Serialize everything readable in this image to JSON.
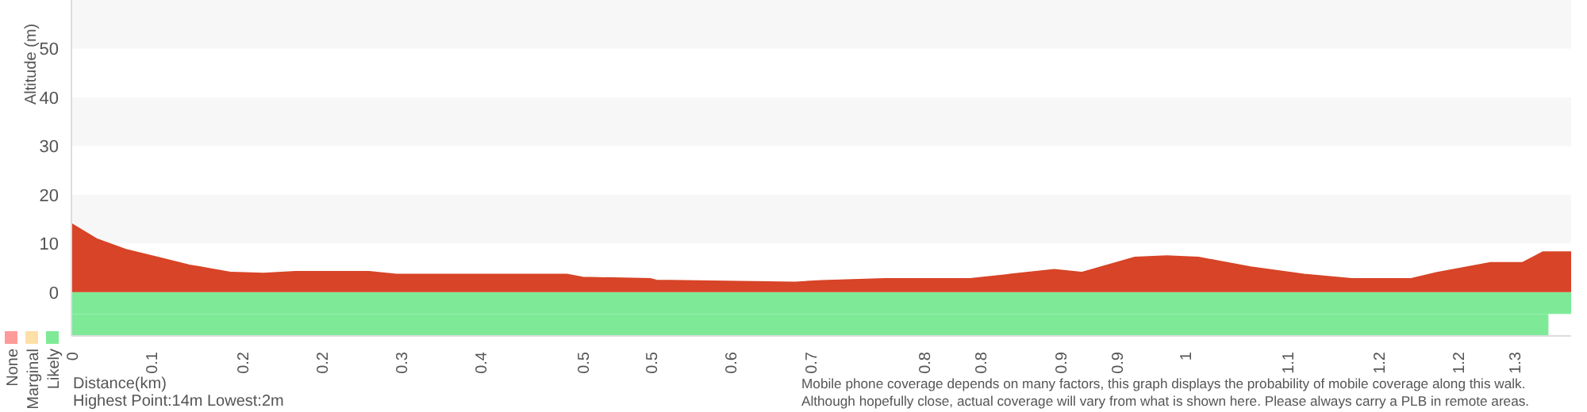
{
  "chart_data": {
    "type": "area",
    "ylabel": "Altitude (m)",
    "xlabel": "Distance(km)",
    "x": [
      0,
      0.022,
      0.048,
      0.076,
      0.104,
      0.141,
      0.169,
      0.197,
      0.262,
      0.286,
      0.436,
      0.45,
      0.51,
      0.515,
      0.576,
      0.637,
      0.66,
      0.716,
      0.791,
      0.865,
      0.889,
      0.936,
      0.964,
      0.992,
      1.038,
      1.085,
      1.127,
      1.179,
      1.202,
      1.249,
      1.277,
      1.295,
      1.32
    ],
    "series": [
      {
        "color": "#d84427",
        "values": [
          14,
          10.9,
          8.7,
          7.1,
          5.5,
          4,
          3.8,
          4.2,
          4.2,
          3.6,
          3.6,
          3,
          2.7,
          2.4,
          2.2,
          2,
          2.3,
          2.7,
          2.7,
          4.6,
          4,
          7.1,
          7.4,
          7.1,
          5.1,
          3.6,
          2.7,
          2.7,
          4,
          6,
          6,
          8.2,
          8.2
        ]
      }
    ],
    "xlim": [
      0,
      1.32
    ],
    "xticks": [
      0,
      {
        "value": 0.07,
        "label": "0.1"
      },
      {
        "value": 0.15,
        "label": "0.2"
      },
      {
        "value": 0.22,
        "label": "0.2"
      },
      {
        "value": 0.29,
        "label": "0.3"
      },
      {
        "value": 0.36,
        "label": "0.4"
      },
      {
        "value": 0.45,
        "label": "0.5"
      },
      {
        "value": 0.51,
        "label": "0.5"
      },
      {
        "value": 0.58,
        "label": "0.6"
      },
      {
        "value": 0.65,
        "label": "0.7"
      },
      {
        "value": 0.75,
        "label": "0.8"
      },
      {
        "value": 0.8,
        "label": "0.8"
      },
      {
        "value": 0.87,
        "label": "0.9"
      },
      {
        "value": 0.92,
        "label": "0.9"
      },
      {
        "value": 0.98,
        "label": "1"
      },
      {
        "value": 1.07,
        "label": "1.1"
      },
      {
        "value": 1.15,
        "label": "1.2"
      },
      {
        "value": 1.22,
        "label": "1.2"
      },
      {
        "value": 1.27,
        "label": "1.3"
      }
    ],
    "ylim": [
      -9,
      60
    ],
    "yticks": [
      0,
      10,
      20,
      30,
      40,
      50
    ],
    "bands": [
      {
        "axis": "y",
        "from": 10,
        "to": 20,
        "color": "#f7f7f7"
      },
      {
        "axis": "y",
        "from": 30,
        "to": 40,
        "color": "#f7f7f7"
      },
      {
        "axis": "y",
        "from": 50,
        "to": 60,
        "color": "#f7f7f7"
      },
      {
        "axis": "x",
        "from": 0,
        "to": 1.32,
        "color": "#7eea98"
      },
      {
        "axis": "x",
        "from": 0,
        "to": 1.3,
        "color": "#7eea98"
      }
    ],
    "annotations": [
      "None",
      "Marginal",
      "Likely",
      "Highest Point:14m Lowest:2m",
      "Mobile phone coverage depends on many factors, this graph displays the probability of mobile coverage along this walk.",
      "Although hopefully close, actual coverage will vary from what is shown here. Please always carry a PLB in remote areas."
    ]
  }
}
